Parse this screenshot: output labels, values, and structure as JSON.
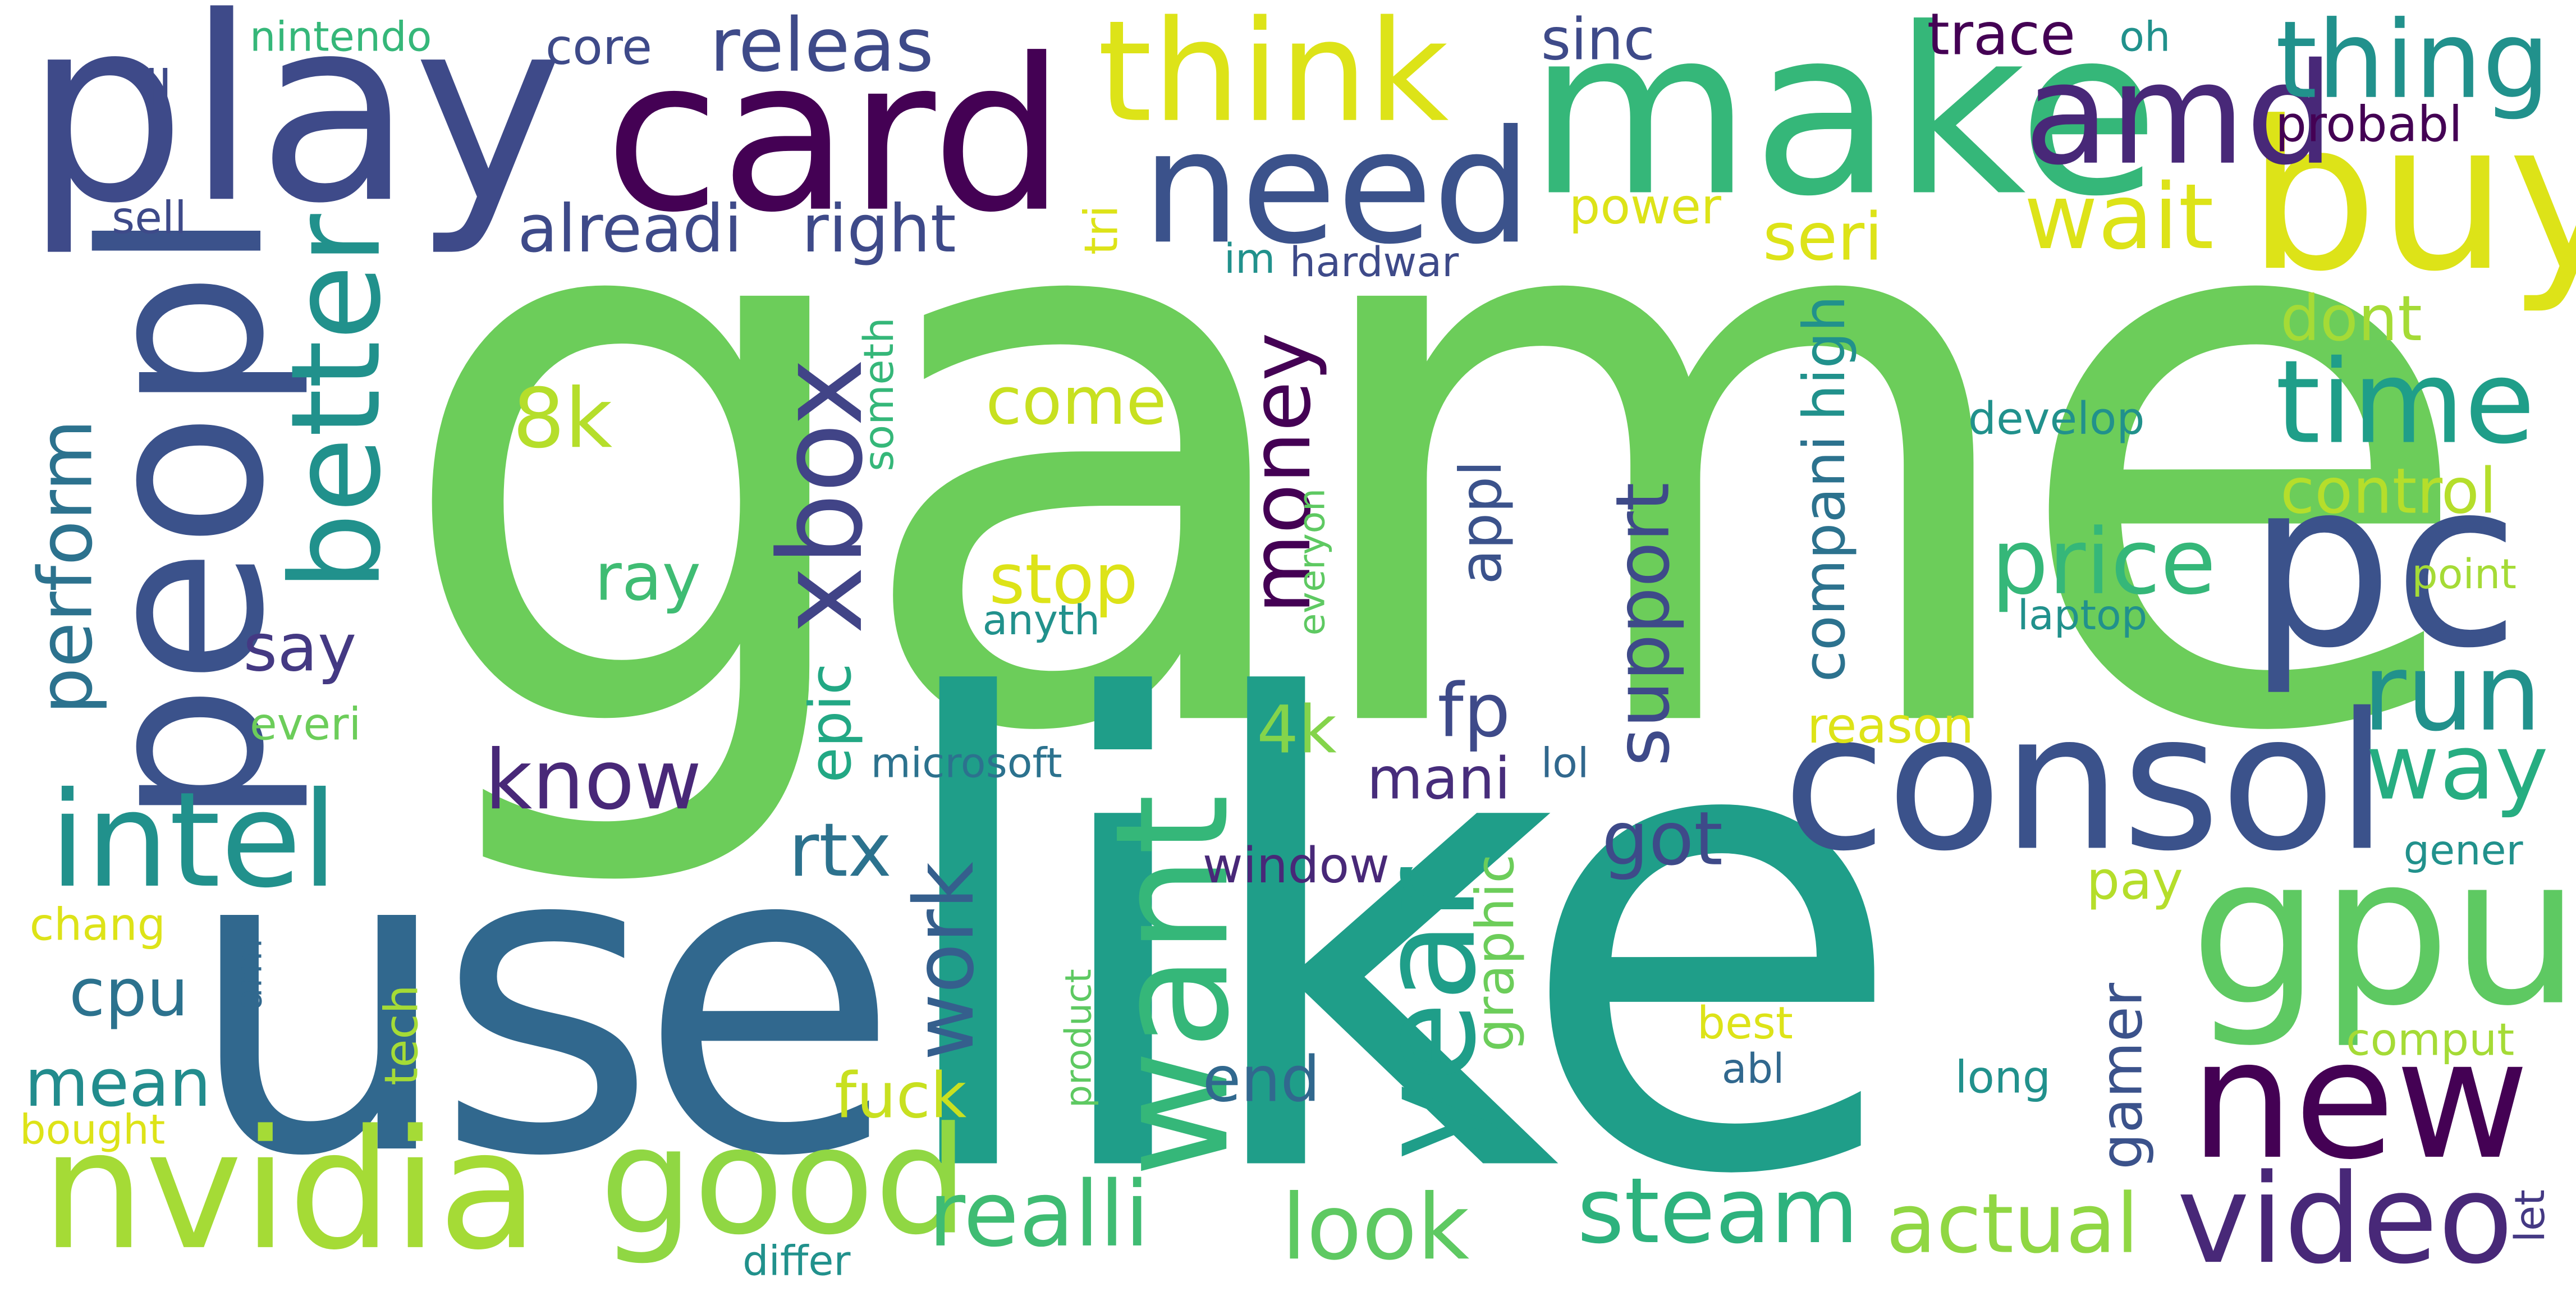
{
  "words": [
    {
      "text": "game",
      "color": "#6ccd5a"
    },
    {
      "text": "like",
      "color": "#1f9e89"
    },
    {
      "text": "use",
      "color": "#31688e"
    },
    {
      "text": "play",
      "color": "#3e4a89"
    },
    {
      "text": "card",
      "color": "#440154"
    },
    {
      "text": "make",
      "color": "#35b779"
    },
    {
      "text": "peopl",
      "color": "#3b528b"
    },
    {
      "text": "need",
      "color": "#3b528b"
    },
    {
      "text": "think",
      "color": "#dde318"
    },
    {
      "text": "buy",
      "color": "#dde318"
    },
    {
      "text": "amd",
      "color": "#482878"
    },
    {
      "text": "pc",
      "color": "#3b528b"
    },
    {
      "text": "consol",
      "color": "#3b528b"
    },
    {
      "text": "gpu",
      "color": "#5ec962"
    },
    {
      "text": "new",
      "color": "#440154"
    },
    {
      "text": "nvidia",
      "color": "#a5db36"
    },
    {
      "text": "want",
      "color": "#35b779"
    },
    {
      "text": "good",
      "color": "#90d743"
    },
    {
      "text": "year",
      "color": "#1f9e89"
    },
    {
      "text": "intel",
      "color": "#21918c"
    },
    {
      "text": "video",
      "color": "#482878"
    },
    {
      "text": "better",
      "color": "#21918c"
    },
    {
      "text": "xbox",
      "color": "#414487"
    },
    {
      "text": "thing",
      "color": "#21918c"
    },
    {
      "text": "time",
      "color": "#1f9e89"
    },
    {
      "text": "wait",
      "color": "#dde318"
    },
    {
      "text": "run",
      "color": "#21918c"
    },
    {
      "text": "way",
      "color": "#26ad81"
    },
    {
      "text": "price",
      "color": "#35b779"
    },
    {
      "text": "realli",
      "color": "#3fbc73"
    },
    {
      "text": "look",
      "color": "#5ec962"
    },
    {
      "text": "steam",
      "color": "#2db27d"
    },
    {
      "text": "actual",
      "color": "#90d743"
    },
    {
      "text": "know",
      "color": "#482878"
    },
    {
      "text": "money",
      "color": "#440154"
    },
    {
      "text": "work",
      "color": "#355f8d"
    },
    {
      "text": "perform",
      "color": "#2c728e"
    },
    {
      "text": "releas",
      "color": "#3e4a89"
    },
    {
      "text": "alreadi",
      "color": "#3e4a89"
    },
    {
      "text": "right",
      "color": "#3e4a89"
    },
    {
      "text": "8k",
      "color": "#b5de2b"
    },
    {
      "text": "come",
      "color": "#c8e020"
    },
    {
      "text": "stop",
      "color": "#dde318"
    },
    {
      "text": "ray",
      "color": "#3fbc73"
    },
    {
      "text": "say",
      "color": "#443983"
    },
    {
      "text": "mean",
      "color": "#228c8d"
    },
    {
      "text": "cpu",
      "color": "#2c728e"
    },
    {
      "text": "fp",
      "color": "#3e4a89"
    },
    {
      "text": "4k",
      "color": "#84d44b"
    },
    {
      "text": "mani",
      "color": "#472d7b"
    },
    {
      "text": "rtx",
      "color": "#2c728e"
    },
    {
      "text": "got",
      "color": "#3e4a89"
    },
    {
      "text": "support",
      "color": "#3e4a89"
    },
    {
      "text": "high",
      "color": "#21918c"
    },
    {
      "text": "compani",
      "color": "#2c728e"
    },
    {
      "text": "epic",
      "color": "#22a884"
    },
    {
      "text": "appl",
      "color": "#3b528b"
    },
    {
      "text": "gamer",
      "color": "#3b528b"
    },
    {
      "text": "seri",
      "color": "#dde318"
    },
    {
      "text": "dont",
      "color": "#a5db36"
    },
    {
      "text": "control",
      "color": "#b5de2b"
    },
    {
      "text": "fuck",
      "color": "#c8e020"
    },
    {
      "text": "end",
      "color": "#31688e"
    },
    {
      "text": "window",
      "color": "#482878"
    },
    {
      "text": "graphic",
      "color": "#6ccd5a"
    },
    {
      "text": "sinc",
      "color": "#3e4a89"
    },
    {
      "text": "trace",
      "color": "#440154"
    },
    {
      "text": "oh",
      "color": "#21918c"
    },
    {
      "text": "probabl",
      "color": "#440154"
    },
    {
      "text": "core",
      "color": "#3e4a89"
    },
    {
      "text": "nintendo",
      "color": "#35b779"
    },
    {
      "text": "ll",
      "color": "#3e4a89"
    },
    {
      "text": "sell",
      "color": "#3e4a89"
    },
    {
      "text": "power",
      "color": "#dde318"
    },
    {
      "text": "tri",
      "color": "#dde318"
    },
    {
      "text": "im",
      "color": "#21918c"
    },
    {
      "text": "hardwar",
      "color": "#3e4a89"
    },
    {
      "text": "someth",
      "color": "#35b779"
    },
    {
      "text": "develop",
      "color": "#21918c"
    },
    {
      "text": "point",
      "color": "#a5db36"
    },
    {
      "text": "laptop",
      "color": "#21918c"
    },
    {
      "text": "anyth",
      "color": "#21918c"
    },
    {
      "text": "everyon",
      "color": "#5ec962"
    },
    {
      "text": "reason",
      "color": "#dde318"
    },
    {
      "text": "everi",
      "color": "#6ccd5a"
    },
    {
      "text": "microsoft",
      "color": "#2c728e"
    },
    {
      "text": "lol",
      "color": "#31688e"
    },
    {
      "text": "gener",
      "color": "#21918c"
    },
    {
      "text": "pay",
      "color": "#b5de2b"
    },
    {
      "text": "chang",
      "color": "#dde318"
    },
    {
      "text": "arm",
      "color": "#31688e"
    },
    {
      "text": "tech",
      "color": "#a5db36"
    },
    {
      "text": "product",
      "color": "#5ec962"
    },
    {
      "text": "best",
      "color": "#dde318"
    },
    {
      "text": "abl",
      "color": "#31688e"
    },
    {
      "text": "long",
      "color": "#21918c"
    },
    {
      "text": "comput",
      "color": "#a5db36"
    },
    {
      "text": "bought",
      "color": "#dde318"
    },
    {
      "text": "differ",
      "color": "#21918c"
    },
    {
      "text": "let",
      "color": "#443983"
    }
  ]
}
